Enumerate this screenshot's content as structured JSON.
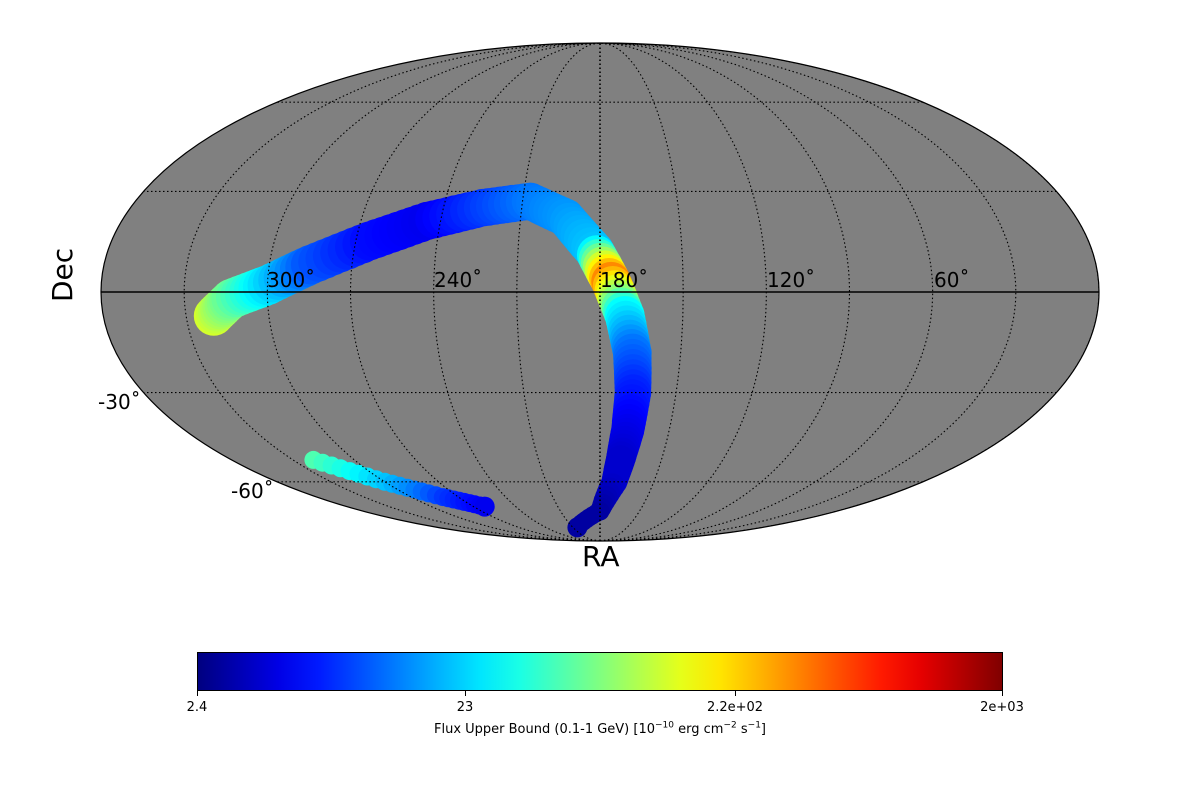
{
  "chart_data": {
    "type": "heatmap",
    "projection": "mollweide",
    "xlabel": "RA",
    "ylabel": "Dec",
    "ra_ticks": [
      "300˚",
      "240˚",
      "180˚",
      "120˚",
      "60˚"
    ],
    "dec_ticks": [
      "-30˚",
      "-60˚"
    ],
    "grid": true,
    "background_color": "#808080",
    "colorbar": {
      "colormap": "jet",
      "scale": "log",
      "range": [
        2.4,
        2000
      ],
      "tick_labels": [
        "2.4",
        "23",
        "2.2e+02",
        "2e+03"
      ],
      "label": {
        "prefix": "Flux Upper Bound (0.1-1 GeV) [10",
        "exp1": "−10",
        "mid": " erg cm",
        "exp2": "−2",
        "mid2": " s",
        "exp3": "−1",
        "suffix": "]"
      }
    },
    "coverage_track": [
      {
        "ra": 320,
        "dec": -7,
        "flux": 120
      },
      {
        "ra": 313,
        "dec": -2,
        "flux": 60
      },
      {
        "ra": 300,
        "dec": 2,
        "flux": 25
      },
      {
        "ra": 285,
        "dec": 8,
        "flux": 10
      },
      {
        "ra": 265,
        "dec": 15,
        "flux": 6
      },
      {
        "ra": 245,
        "dec": 21,
        "flux": 5
      },
      {
        "ra": 225,
        "dec": 25,
        "flux": 8
      },
      {
        "ra": 207,
        "dec": 27,
        "flux": 12
      },
      {
        "ra": 193,
        "dec": 22,
        "flux": 15
      },
      {
        "ra": 182,
        "dec": 12,
        "flux": 20
      },
      {
        "ra": 176,
        "dec": 3,
        "flux": 350
      },
      {
        "ra": 171,
        "dec": -7,
        "flux": 30
      },
      {
        "ra": 168,
        "dec": -18,
        "flux": 12
      },
      {
        "ra": 167,
        "dec": -30,
        "flux": 7
      },
      {
        "ra": 168,
        "dec": -42,
        "flux": 5
      },
      {
        "ra": 170,
        "dec": -52,
        "flux": 4
      },
      {
        "ra": 172,
        "dec": -60,
        "flux": 4
      },
      {
        "ra": 180,
        "dec": -72,
        "flux": 3
      },
      {
        "ra": 205,
        "dec": -80,
        "flux": 3
      }
    ],
    "south_arc": [
      {
        "ra": 320,
        "dec": -52,
        "flux": 50
      },
      {
        "ra": 300,
        "dec": -60,
        "flux": 20
      },
      {
        "ra": 280,
        "dec": -66,
        "flux": 8
      },
      {
        "ra": 262,
        "dec": -70,
        "flux": 5
      }
    ]
  }
}
